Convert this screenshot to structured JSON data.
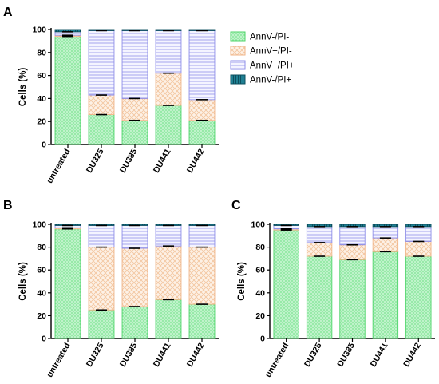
{
  "colors": {
    "green": "#8de8a0",
    "green_stroke": "#4fd46a",
    "orange": "#fbe3cf",
    "orange_stroke": "#f3b98a",
    "purple": "#eeeeff",
    "purple_stroke": "#8f8fe8",
    "teal": "#2b8fa0",
    "teal_dark": "#0c4f5e"
  },
  "legend": [
    {
      "label": "AnnV-/PI-",
      "pattern": "green"
    },
    {
      "label": "AnnV+/PI-",
      "pattern": "orange"
    },
    {
      "label": "AnnV+/PI+",
      "pattern": "purple"
    },
    {
      "label": "AnnV-/PI+",
      "pattern": "teal"
    }
  ],
  "chart_data": [
    {
      "panel": "A",
      "type": "bar",
      "stacked": true,
      "categories": [
        "untreated",
        "DU325",
        "DU385",
        "DU441",
        "DU442"
      ],
      "ylabel": "Cells (%)",
      "ylim": [
        0,
        100
      ],
      "yticks": [
        0,
        20,
        40,
        60,
        80,
        100
      ],
      "series": [
        {
          "name": "AnnV-/PI-",
          "values": [
            94,
            26,
            21,
            34,
            21
          ]
        },
        {
          "name": "AnnV+/PI-",
          "values": [
            1,
            17,
            19,
            28,
            18
          ]
        },
        {
          "name": "AnnV+/PI+",
          "values": [
            3,
            56,
            59,
            37,
            60
          ]
        },
        {
          "name": "AnnV-/PI+",
          "values": [
            2,
            1,
            1,
            1,
            1
          ]
        }
      ]
    },
    {
      "panel": "B",
      "type": "bar",
      "stacked": true,
      "categories": [
        "untreated",
        "DU325",
        "DU385",
        "DU441",
        "DU442"
      ],
      "ylabel": "Cells (%)",
      "ylim": [
        0,
        100
      ],
      "yticks": [
        0,
        20,
        40,
        60,
        80,
        100
      ],
      "series": [
        {
          "name": "AnnV-/PI-",
          "values": [
            96,
            25,
            28,
            34,
            30
          ]
        },
        {
          "name": "AnnV+/PI-",
          "values": [
            1,
            55,
            51,
            47,
            50
          ]
        },
        {
          "name": "AnnV+/PI+",
          "values": [
            2,
            19,
            20,
            18,
            19
          ]
        },
        {
          "name": "AnnV-/PI+",
          "values": [
            1,
            1,
            1,
            1,
            1
          ]
        }
      ]
    },
    {
      "panel": "C",
      "type": "bar",
      "stacked": true,
      "categories": [
        "untreated",
        "DU325",
        "DU385",
        "DU441",
        "DU442"
      ],
      "ylabel": "Cells (%)",
      "ylim": [
        0,
        100
      ],
      "yticks": [
        0,
        20,
        40,
        60,
        80,
        100
      ],
      "series": [
        {
          "name": "AnnV-/PI-",
          "values": [
            95,
            72,
            69,
            76,
            72
          ]
        },
        {
          "name": "AnnV+/PI-",
          "values": [
            1,
            12,
            13,
            12,
            13
          ]
        },
        {
          "name": "AnnV+/PI+",
          "values": [
            3,
            14,
            16,
            10,
            13
          ]
        },
        {
          "name": "AnnV-/PI+",
          "values": [
            1,
            2,
            2,
            2,
            2
          ]
        }
      ]
    }
  ]
}
